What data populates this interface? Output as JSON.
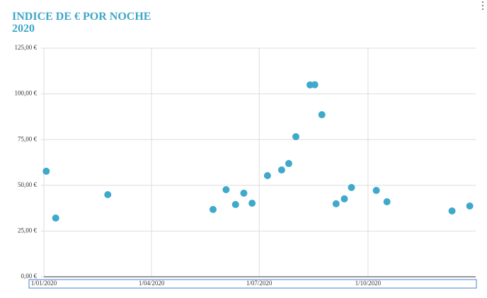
{
  "chart_data": {
    "type": "scatter",
    "title": [
      "INDICE DE € POR NOCHE",
      "2020"
    ],
    "color": "#3fa9cc",
    "x": [
      "2020-01-03",
      "2020-01-11",
      "2020-02-24",
      "2020-05-23",
      "2020-06-03",
      "2020-06-11",
      "2020-06-18",
      "2020-06-25",
      "2020-07-08",
      "2020-07-20",
      "2020-07-26",
      "2020-08-01",
      "2020-08-13",
      "2020-08-17",
      "2020-08-23",
      "2020-09-04",
      "2020-09-11",
      "2020-09-17",
      "2020-10-08",
      "2020-10-17",
      "2020-12-11",
      "2020-12-26"
    ],
    "values": [
      57.7,
      32.1,
      44.9,
      36.8,
      47.6,
      39.5,
      45.7,
      40.2,
      55.3,
      58.4,
      61.9,
      76.6,
      104.9,
      105.0,
      88.6,
      39.9,
      42.6,
      48.8,
      47.2,
      41.0,
      36.0,
      38.7
    ],
    "xlim": [
      "2020-01-01",
      "2020-12-31"
    ],
    "xticks": [
      {
        "value": "2020-01-01",
        "label": "1/01/2020"
      },
      {
        "value": "2020-04-01",
        "label": "1/04/2020"
      },
      {
        "value": "2020-07-01",
        "label": "1/07/2020"
      },
      {
        "value": "2020-10-01",
        "label": "1/10/2020"
      }
    ],
    "ylim": [
      0,
      125
    ],
    "yticks": [
      {
        "value": 0,
        "label": "0,00 €"
      },
      {
        "value": 25,
        "label": "25,00 €"
      },
      {
        "value": 50,
        "label": "50,00 €"
      },
      {
        "value": 75,
        "label": "75,00 €"
      },
      {
        "value": 100,
        "label": "100,00 €"
      },
      {
        "value": 125,
        "label": "125,00 €"
      }
    ],
    "grid": true
  }
}
